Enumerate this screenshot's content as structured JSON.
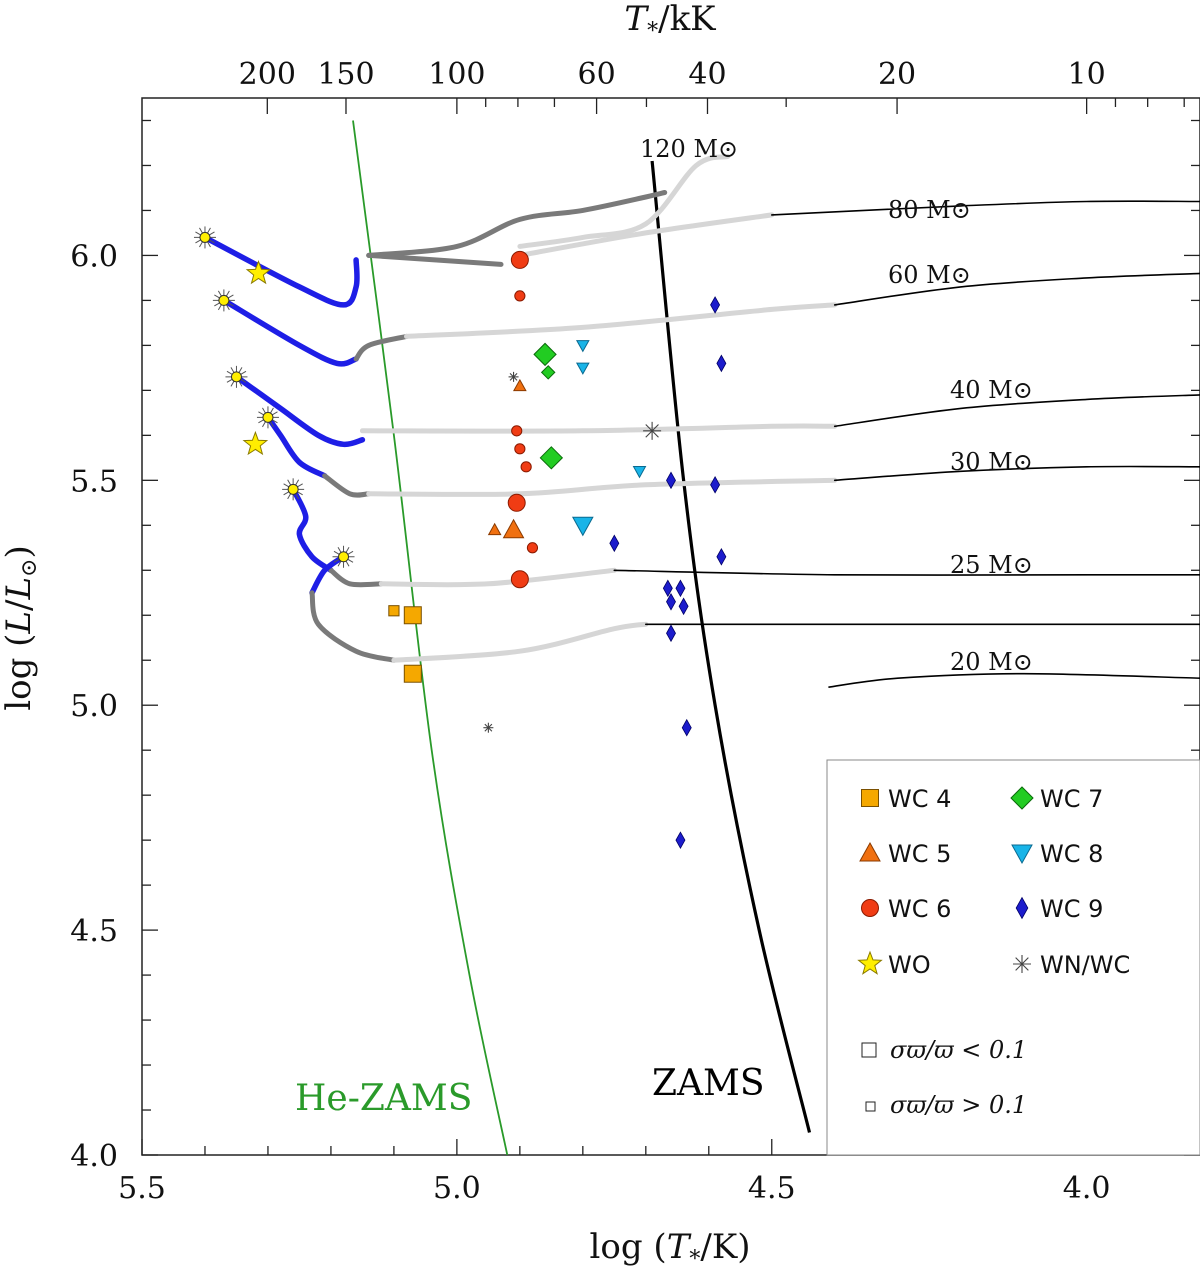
{
  "chart_data": {
    "type": "scatter",
    "title": "",
    "xlabel": "log (T*/K)",
    "ylabel": "log (L/L⊙)",
    "top_xlabel": "T*/kK",
    "xlim": [
      5.5,
      3.82
    ],
    "ylim": [
      4.0,
      6.35
    ],
    "x_ticks": [
      "5.5",
      "5.0",
      "4.5",
      "4.0"
    ],
    "x_tick_values": [
      5.5,
      5.0,
      4.5,
      4.0
    ],
    "y_ticks": [
      "4.0",
      "4.5",
      "5.0",
      "5.5",
      "6.0"
    ],
    "y_tick_values": [
      4.0,
      4.5,
      5.0,
      5.5,
      6.0
    ],
    "top_ticks": [
      "200",
      "150",
      "100",
      "60",
      "40",
      "20",
      "10"
    ],
    "top_tick_values_kK": [
      200,
      150,
      100,
      60,
      40,
      20,
      10
    ],
    "track_labels": [
      "120 M⊙",
      "80 M⊙",
      "60 M⊙",
      "40 M⊙",
      "30 M⊙",
      "25 M⊙",
      "20 M⊙"
    ],
    "zams_label": "ZAMS",
    "he_zams_label": "He-ZAMS",
    "colors": {
      "WC4": "#f5a800",
      "WC5": "#f07010",
      "WC6": "#f03c14",
      "WC7": "#22cc22",
      "WC8": "#18b4e8",
      "WC9": "#1c1ccc",
      "WO": "#ffee00",
      "WNWC": "#444444",
      "track_blue": "#1e1ee6",
      "track_dark": "#7a7a7a",
      "track_light": "#d6d6d6",
      "he_zams": "#2a9a2a"
    },
    "legend": {
      "entries": [
        {
          "key": "WC4",
          "label": "WC 4",
          "marker": "square"
        },
        {
          "key": "WC7",
          "label": "WC 7",
          "marker": "diamond"
        },
        {
          "key": "WC5",
          "label": "WC 5",
          "marker": "triangle-up"
        },
        {
          "key": "WC8",
          "label": "WC 8",
          "marker": "triangle-down"
        },
        {
          "key": "WC6",
          "label": "WC 6",
          "marker": "circle"
        },
        {
          "key": "WC9",
          "label": "WC 9",
          "marker": "thin-diamond"
        },
        {
          "key": "WO",
          "label": "WO",
          "marker": "star"
        },
        {
          "key": "WNWC",
          "label": "WN/WC",
          "marker": "asterisk"
        }
      ],
      "size_notes": [
        "σϖ/ϖ  < 0.1",
        "σϖ/ϖ  > 0.1"
      ],
      "placement": "bottom-right"
    },
    "series": [
      {
        "name": "WC 4",
        "points": [
          {
            "x": 5.07,
            "y": 5.2,
            "big": true
          },
          {
            "x": 5.1,
            "y": 5.21,
            "big": false
          },
          {
            "x": 5.07,
            "y": 5.07,
            "big": true
          }
        ]
      },
      {
        "name": "WC 5",
        "points": [
          {
            "x": 4.91,
            "y": 5.39,
            "big": true
          },
          {
            "x": 4.94,
            "y": 5.39,
            "big": false
          },
          {
            "x": 4.9,
            "y": 5.71,
            "big": false
          }
        ]
      },
      {
        "name": "WC 6",
        "points": [
          {
            "x": 4.9,
            "y": 5.99,
            "big": true
          },
          {
            "x": 4.9,
            "y": 5.91,
            "big": false
          },
          {
            "x": 4.905,
            "y": 5.61,
            "big": false
          },
          {
            "x": 4.9,
            "y": 5.57,
            "big": false
          },
          {
            "x": 4.89,
            "y": 5.53,
            "big": false
          },
          {
            "x": 4.905,
            "y": 5.45,
            "big": true
          },
          {
            "x": 4.88,
            "y": 5.35,
            "big": false
          },
          {
            "x": 4.9,
            "y": 5.28,
            "big": true
          }
        ]
      },
      {
        "name": "WC 7",
        "points": [
          {
            "x": 4.86,
            "y": 5.78,
            "big": true
          },
          {
            "x": 4.855,
            "y": 5.74,
            "big": false
          },
          {
            "x": 4.85,
            "y": 5.55,
            "big": true
          }
        ]
      },
      {
        "name": "WC 8",
        "points": [
          {
            "x": 4.8,
            "y": 5.8,
            "big": false
          },
          {
            "x": 4.8,
            "y": 5.75,
            "big": false
          },
          {
            "x": 4.71,
            "y": 5.52,
            "big": false
          },
          {
            "x": 4.8,
            "y": 5.4,
            "big": true
          }
        ]
      },
      {
        "name": "WC 9",
        "points": [
          {
            "x": 4.59,
            "y": 5.89,
            "big": false
          },
          {
            "x": 4.58,
            "y": 5.76,
            "big": false
          },
          {
            "x": 4.66,
            "y": 5.5,
            "big": false
          },
          {
            "x": 4.59,
            "y": 5.49,
            "big": false
          },
          {
            "x": 4.75,
            "y": 5.36,
            "big": false
          },
          {
            "x": 4.58,
            "y": 5.33,
            "big": false
          },
          {
            "x": 4.665,
            "y": 5.26,
            "big": false
          },
          {
            "x": 4.645,
            "y": 5.26,
            "big": false
          },
          {
            "x": 4.66,
            "y": 5.23,
            "big": false
          },
          {
            "x": 4.64,
            "y": 5.22,
            "big": false
          },
          {
            "x": 4.66,
            "y": 5.16,
            "big": false
          },
          {
            "x": 4.635,
            "y": 4.95,
            "big": false
          },
          {
            "x": 4.645,
            "y": 4.7,
            "big": false
          }
        ]
      },
      {
        "name": "WO",
        "points": [
          {
            "x": 5.315,
            "y": 5.96,
            "big": true
          },
          {
            "x": 5.32,
            "y": 5.58,
            "big": true
          }
        ]
      },
      {
        "name": "WN/WC",
        "points": [
          {
            "x": 4.91,
            "y": 5.73,
            "big": false
          },
          {
            "x": 4.95,
            "y": 4.95,
            "big": false
          },
          {
            "x": 4.69,
            "y": 5.61,
            "big": true
          }
        ]
      }
    ],
    "track_endpoints": [
      {
        "x": 5.4,
        "y": 6.04
      },
      {
        "x": 5.37,
        "y": 5.9
      },
      {
        "x": 5.35,
        "y": 5.73
      },
      {
        "x": 5.3,
        "y": 5.64
      },
      {
        "x": 5.26,
        "y": 5.48
      },
      {
        "x": 5.18,
        "y": 5.33
      }
    ],
    "he_zams": [
      {
        "x": 5.165,
        "y": 6.3
      },
      {
        "x": 5.1,
        "y": 5.6
      },
      {
        "x": 5.04,
        "y": 4.9
      },
      {
        "x": 4.98,
        "y": 4.4
      },
      {
        "x": 4.92,
        "y": 4.0
      }
    ],
    "zams": [
      {
        "x": 4.69,
        "y": 6.21
      },
      {
        "x": 4.64,
        "y": 5.5
      },
      {
        "x": 4.59,
        "y": 5.0
      },
      {
        "x": 4.52,
        "y": 4.5
      },
      {
        "x": 4.44,
        "y": 4.05
      }
    ],
    "tracks": [
      {
        "mass": "120 M⊙",
        "segments": [
          {
            "shade": "dark",
            "points": [
              [
                5.14,
                6.0
              ],
              [
                5.0,
                6.02
              ],
              [
                4.9,
                6.08
              ],
              [
                4.8,
                6.1
              ],
              [
                4.7,
                6.13
              ],
              [
                4.67,
                6.14
              ]
            ]
          },
          {
            "shade": "light",
            "points": [
              [
                4.9,
                6.02
              ],
              [
                4.8,
                6.04
              ],
              [
                4.7,
                6.07
              ],
              [
                4.62,
                6.2
              ],
              [
                4.57,
                6.22
              ]
            ]
          },
          {
            "shade": "dark",
            "points": [
              [
                5.14,
                6.0
              ],
              [
                4.93,
                5.98
              ]
            ]
          }
        ]
      },
      {
        "mass": "80 M⊙",
        "segments": [
          {
            "shade": "blue",
            "points": [
              [
                5.4,
                6.04
              ],
              [
                5.25,
                5.93
              ],
              [
                5.18,
                5.89
              ],
              [
                5.16,
                5.93
              ],
              [
                5.16,
                5.99
              ]
            ]
          },
          {
            "shade": "light",
            "points": [
              [
                4.9,
                6.0
              ],
              [
                4.7,
                6.05
              ],
              [
                4.5,
                6.09
              ]
            ]
          },
          {
            "shade": "black",
            "points": [
              [
                4.5,
                6.09
              ],
              [
                4.2,
                6.11
              ],
              [
                4.0,
                6.12
              ],
              [
                3.82,
                6.12
              ]
            ]
          }
        ]
      },
      {
        "mass": "60 M⊙",
        "segments": [
          {
            "shade": "blue",
            "points": [
              [
                5.37,
                5.9
              ],
              [
                5.25,
                5.8
              ],
              [
                5.19,
                5.76
              ],
              [
                5.16,
                5.77
              ]
            ]
          },
          {
            "shade": "dark",
            "points": [
              [
                5.16,
                5.77
              ],
              [
                5.14,
                5.8
              ],
              [
                5.08,
                5.82
              ]
            ]
          },
          {
            "shade": "light",
            "points": [
              [
                5.08,
                5.82
              ],
              [
                4.8,
                5.84
              ],
              [
                4.5,
                5.88
              ],
              [
                4.4,
                5.89
              ]
            ]
          },
          {
            "shade": "black",
            "points": [
              [
                4.4,
                5.89
              ],
              [
                4.2,
                5.93
              ],
              [
                4.0,
                5.95
              ],
              [
                3.82,
                5.96
              ]
            ]
          }
        ]
      },
      {
        "mass": "40 M⊙",
        "segments": [
          {
            "shade": "blue",
            "points": [
              [
                5.35,
                5.73
              ],
              [
                5.31,
                5.69
              ],
              [
                5.28,
                5.66
              ],
              [
                5.22,
                5.6
              ],
              [
                5.18,
                5.58
              ],
              [
                5.15,
                5.59
              ]
            ]
          },
          {
            "shade": "light",
            "points": [
              [
                5.15,
                5.61
              ],
              [
                4.8,
                5.61
              ],
              [
                4.5,
                5.62
              ],
              [
                4.4,
                5.62
              ]
            ]
          },
          {
            "shade": "black",
            "points": [
              [
                4.4,
                5.62
              ],
              [
                4.2,
                5.66
              ],
              [
                4.0,
                5.68
              ],
              [
                3.82,
                5.69
              ]
            ]
          }
        ]
      },
      {
        "mass": "30 M⊙",
        "segments": [
          {
            "shade": "blue",
            "points": [
              [
                5.3,
                5.64
              ],
              [
                5.28,
                5.6
              ],
              [
                5.25,
                5.54
              ],
              [
                5.21,
                5.51
              ]
            ]
          },
          {
            "shade": "dark",
            "points": [
              [
                5.21,
                5.51
              ],
              [
                5.17,
                5.47
              ],
              [
                5.14,
                5.47
              ]
            ]
          },
          {
            "shade": "light",
            "points": [
              [
                5.14,
                5.47
              ],
              [
                4.9,
                5.47
              ],
              [
                4.7,
                5.49
              ],
              [
                4.4,
                5.5
              ]
            ]
          },
          {
            "shade": "black",
            "points": [
              [
                4.4,
                5.5
              ],
              [
                4.2,
                5.52
              ],
              [
                4.0,
                5.53
              ],
              [
                3.82,
                5.53
              ]
            ]
          }
        ]
      },
      {
        "mass": "25 M⊙",
        "segments": [
          {
            "shade": "blue",
            "points": [
              [
                5.26,
                5.48
              ],
              [
                5.24,
                5.42
              ],
              [
                5.25,
                5.38
              ],
              [
                5.23,
                5.33
              ],
              [
                5.2,
                5.3
              ]
            ]
          },
          {
            "shade": "dark",
            "points": [
              [
                5.2,
                5.3
              ],
              [
                5.17,
                5.27
              ],
              [
                5.12,
                5.27
              ]
            ]
          },
          {
            "shade": "light",
            "points": [
              [
                5.12,
                5.27
              ],
              [
                4.95,
                5.27
              ],
              [
                4.75,
                5.3
              ]
            ]
          },
          {
            "shade": "black",
            "points": [
              [
                4.75,
                5.3
              ],
              [
                4.4,
                5.29
              ],
              [
                4.0,
                5.29
              ],
              [
                3.82,
                5.29
              ]
            ]
          }
        ]
      },
      {
        "mass": "20 M⊙",
        "segments": [
          {
            "shade": "blue",
            "points": [
              [
                5.18,
                5.33
              ],
              [
                5.21,
                5.3
              ],
              [
                5.23,
                5.25
              ]
            ]
          },
          {
            "shade": "dark",
            "points": [
              [
                5.23,
                5.25
              ],
              [
                5.22,
                5.18
              ],
              [
                5.16,
                5.12
              ],
              [
                5.1,
                5.1
              ]
            ]
          },
          {
            "shade": "light",
            "points": [
              [
                5.1,
                5.1
              ],
              [
                4.9,
                5.12
              ],
              [
                4.75,
                5.17
              ],
              [
                4.7,
                5.18
              ]
            ]
          },
          {
            "shade": "black",
            "points": [
              [
                4.7,
                5.18
              ],
              [
                4.4,
                5.18
              ],
              [
                4.0,
                5.18
              ],
              [
                3.82,
                5.18
              ]
            ]
          }
        ]
      }
    ],
    "lower_tracks": [
      {
        "mass": "20 M⊙",
        "points": [
          [
            4.41,
            5.04
          ],
          [
            4.3,
            5.06
          ],
          [
            4.1,
            5.07
          ],
          [
            3.82,
            5.06
          ]
        ]
      }
    ]
  }
}
